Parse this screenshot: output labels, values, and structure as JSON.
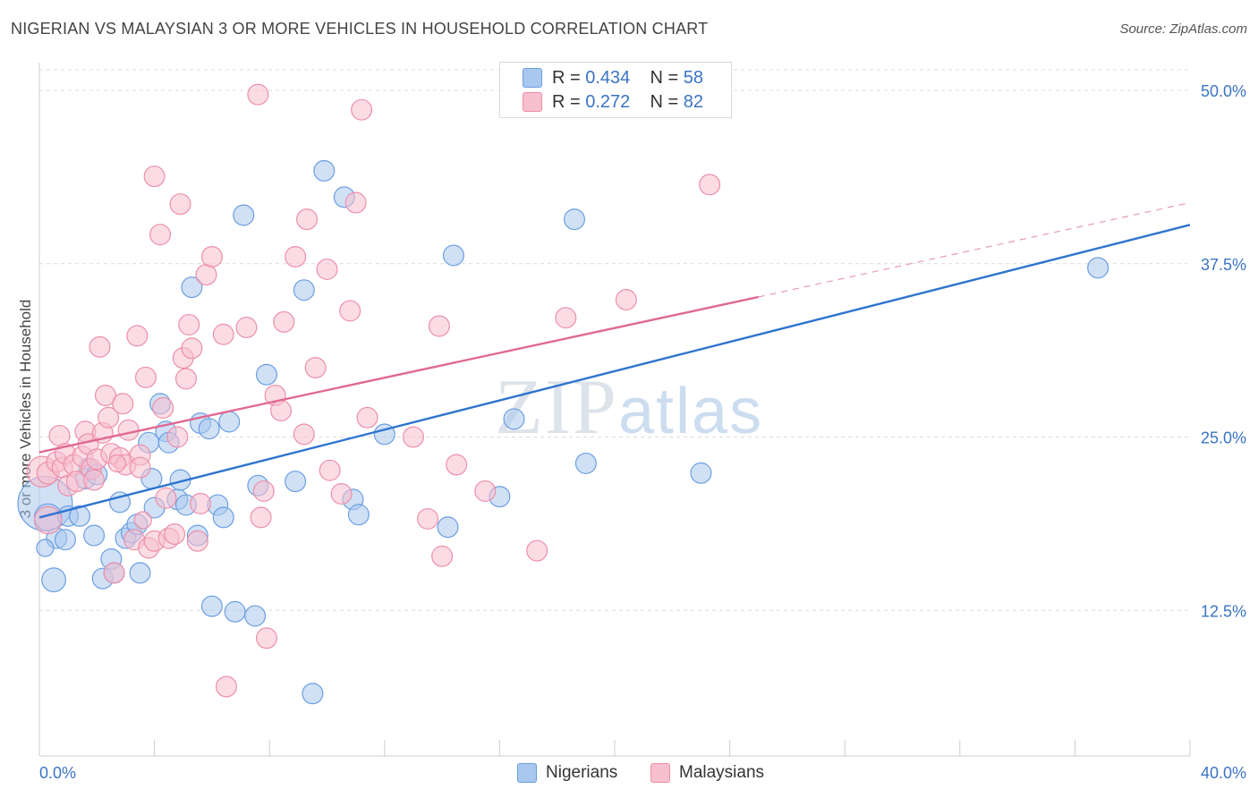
{
  "title": "NIGERIAN VS MALAYSIAN 3 OR MORE VEHICLES IN HOUSEHOLD CORRELATION CHART",
  "source": "Source: ZipAtlas.com",
  "watermark": {
    "zip": "ZIP",
    "atlas": "atlas"
  },
  "legend": {
    "r_label": "R =",
    "n_label": "N =",
    "rows": [
      {
        "name": "Nigerians",
        "r": "0.434",
        "n": "58",
        "color": "#a9c8ef",
        "edge": "#6b9ee0"
      },
      {
        "name": "Malaysians",
        "r": "0.272",
        "n": "82",
        "color": "#f8c0cf",
        "edge": "#ec8fa9"
      }
    ]
  },
  "chart_data": {
    "type": "scatter",
    "title": "NIGERIAN VS MALAYSIAN 3 OR MORE VEHICLES IN HOUSEHOLD CORRELATION CHART",
    "xlabel": "",
    "ylabel": "3 or more Vehicles in Household",
    "xlim": [
      0,
      40
    ],
    "ylim": [
      2,
      52
    ],
    "x_tick_labels": [
      "0.0%",
      "40.0%"
    ],
    "y_ticks": [
      12.5,
      25.0,
      37.5,
      50.0
    ],
    "y_tick_labels": [
      "12.5%",
      "25.0%",
      "37.5%",
      "50.0%"
    ],
    "series": [
      {
        "name": "Nigerians",
        "color": "#6b9ee0",
        "fill": "#a9c8ef",
        "trend": {
          "x0": 0,
          "y0": 19.2,
          "x1": 40,
          "y1": 40.3
        },
        "points": [
          [
            0.2,
            20.2,
            3.2
          ],
          [
            0.3,
            19.2,
            1.6
          ],
          [
            0.5,
            14.7,
            1.4
          ],
          [
            0.6,
            17.7,
            1.2
          ],
          [
            0.9,
            17.6,
            1.2
          ],
          [
            1.0,
            19.3,
            1.2
          ],
          [
            1.4,
            19.3,
            1.2
          ],
          [
            1.6,
            22.0,
            1.2
          ],
          [
            1.7,
            22.8,
            1.1
          ],
          [
            2.0,
            22.3,
            1.2
          ],
          [
            1.9,
            17.9,
            1.2
          ],
          [
            2.2,
            14.8,
            1.2
          ],
          [
            2.5,
            16.2,
            1.2
          ],
          [
            2.6,
            15.2,
            1.2
          ],
          [
            2.8,
            20.3,
            1.2
          ],
          [
            3.0,
            17.7,
            1.2
          ],
          [
            3.2,
            18.1,
            1.2
          ],
          [
            3.4,
            18.7,
            1.2
          ],
          [
            3.5,
            15.2,
            1.2
          ],
          [
            3.8,
            24.6,
            1.2
          ],
          [
            3.9,
            22.0,
            1.2
          ],
          [
            4.0,
            19.9,
            1.2
          ],
          [
            4.2,
            27.4,
            1.2
          ],
          [
            4.4,
            25.4,
            1.2
          ],
          [
            4.5,
            24.6,
            1.2
          ],
          [
            4.8,
            20.5,
            1.2
          ],
          [
            4.9,
            21.9,
            1.2
          ],
          [
            5.1,
            20.1,
            1.2
          ],
          [
            5.3,
            35.8,
            1.2
          ],
          [
            5.5,
            17.9,
            1.2
          ],
          [
            5.6,
            26.0,
            1.2
          ],
          [
            5.9,
            25.6,
            1.2
          ],
          [
            6.0,
            12.8,
            1.2
          ],
          [
            6.2,
            20.1,
            1.2
          ],
          [
            6.4,
            19.2,
            1.2
          ],
          [
            6.6,
            26.1,
            1.2
          ],
          [
            6.8,
            12.4,
            1.2
          ],
          [
            7.1,
            41.0,
            1.2
          ],
          [
            7.5,
            12.1,
            1.2
          ],
          [
            7.6,
            21.5,
            1.2
          ],
          [
            7.9,
            29.5,
            1.2
          ],
          [
            8.9,
            21.8,
            1.2
          ],
          [
            9.2,
            35.6,
            1.2
          ],
          [
            9.5,
            6.5,
            1.2
          ],
          [
            9.9,
            44.2,
            1.2
          ],
          [
            10.6,
            42.3,
            1.2
          ],
          [
            10.9,
            20.5,
            1.2
          ],
          [
            11.1,
            19.4,
            1.2
          ],
          [
            12.0,
            25.2,
            1.2
          ],
          [
            14.4,
            38.1,
            1.2
          ],
          [
            14.2,
            18.5,
            1.2
          ],
          [
            16.0,
            20.7,
            1.2
          ],
          [
            16.5,
            26.3,
            1.2
          ],
          [
            18.6,
            40.7,
            1.2
          ],
          [
            19.0,
            23.1,
            1.2
          ],
          [
            23.0,
            22.4,
            1.2
          ],
          [
            36.8,
            37.2,
            1.2
          ],
          [
            0.2,
            17.0,
            1.0
          ]
        ]
      },
      {
        "name": "Malaysians",
        "color": "#ec8fa9",
        "fill": "#f8c0cf",
        "trend": {
          "x0": 0,
          "y0": 23.9,
          "x1": 25,
          "y1": 35.1
        },
        "trend_dashed": {
          "x0": 25,
          "y0": 35.1,
          "x1": 40,
          "y1": 41.9
        },
        "points": [
          [
            0.1,
            22.5,
            1.8
          ],
          [
            0.3,
            22.4,
            1.3
          ],
          [
            0.3,
            19.0,
            1.6
          ],
          [
            0.6,
            23.2,
            1.2
          ],
          [
            0.7,
            25.1,
            1.2
          ],
          [
            0.8,
            22.8,
            1.2
          ],
          [
            0.9,
            23.8,
            1.2
          ],
          [
            1.0,
            21.5,
            1.2
          ],
          [
            1.2,
            23.0,
            1.2
          ],
          [
            1.3,
            21.8,
            1.2
          ],
          [
            1.5,
            23.6,
            1.2
          ],
          [
            1.6,
            25.4,
            1.2
          ],
          [
            1.7,
            24.5,
            1.2
          ],
          [
            1.8,
            22.7,
            1.2
          ],
          [
            1.9,
            21.9,
            1.2
          ],
          [
            2.0,
            23.4,
            1.2
          ],
          [
            2.1,
            31.5,
            1.2
          ],
          [
            2.2,
            25.3,
            1.2
          ],
          [
            2.3,
            28.0,
            1.2
          ],
          [
            2.4,
            26.4,
            1.2
          ],
          [
            2.5,
            23.8,
            1.2
          ],
          [
            2.6,
            15.2,
            1.2
          ],
          [
            2.8,
            23.5,
            1.2
          ],
          [
            2.9,
            27.4,
            1.2
          ],
          [
            3.1,
            25.5,
            1.2
          ],
          [
            3.0,
            23.0,
            1.2
          ],
          [
            3.3,
            17.6,
            1.2
          ],
          [
            3.4,
            32.3,
            1.2
          ],
          [
            3.5,
            23.7,
            1.2
          ],
          [
            3.5,
            22.8,
            1.2
          ],
          [
            3.7,
            29.3,
            1.2
          ],
          [
            3.8,
            17.0,
            1.2
          ],
          [
            4.0,
            17.5,
            1.2
          ],
          [
            4.0,
            43.8,
            1.2
          ],
          [
            4.2,
            39.6,
            1.2
          ],
          [
            4.3,
            27.1,
            1.2
          ],
          [
            4.4,
            20.6,
            1.2
          ],
          [
            4.5,
            17.7,
            1.2
          ],
          [
            4.7,
            18.0,
            1.2
          ],
          [
            4.8,
            25.0,
            1.2
          ],
          [
            4.9,
            41.8,
            1.2
          ],
          [
            5.0,
            30.7,
            1.2
          ],
          [
            5.1,
            29.2,
            1.2
          ],
          [
            5.2,
            33.1,
            1.2
          ],
          [
            5.3,
            31.4,
            1.2
          ],
          [
            5.5,
            17.5,
            1.2
          ],
          [
            5.6,
            20.2,
            1.2
          ],
          [
            5.8,
            36.7,
            1.2
          ],
          [
            6.0,
            38.0,
            1.2
          ],
          [
            6.4,
            32.4,
            1.2
          ],
          [
            6.5,
            7.0,
            1.2
          ],
          [
            7.2,
            32.9,
            1.2
          ],
          [
            7.7,
            19.2,
            1.2
          ],
          [
            7.8,
            21.1,
            1.2
          ],
          [
            7.9,
            10.5,
            1.2
          ],
          [
            8.2,
            28.0,
            1.2
          ],
          [
            8.4,
            26.9,
            1.2
          ],
          [
            8.5,
            33.3,
            1.2
          ],
          [
            8.9,
            38.0,
            1.2
          ],
          [
            9.2,
            25.2,
            1.2
          ],
          [
            9.3,
            40.7,
            1.2
          ],
          [
            9.6,
            30.0,
            1.2
          ],
          [
            10.0,
            37.1,
            1.2
          ],
          [
            10.1,
            22.6,
            1.2
          ],
          [
            10.5,
            20.9,
            1.2
          ],
          [
            10.8,
            34.1,
            1.2
          ],
          [
            11.0,
            41.9,
            1.2
          ],
          [
            11.4,
            26.4,
            1.2
          ],
          [
            7.6,
            49.7,
            1.2
          ],
          [
            11.2,
            48.6,
            1.2
          ],
          [
            13.0,
            25.0,
            1.2
          ],
          [
            13.5,
            19.1,
            1.2
          ],
          [
            13.9,
            33.0,
            1.2
          ],
          [
            14.0,
            16.4,
            1.2
          ],
          [
            14.5,
            23.0,
            1.2
          ],
          [
            15.5,
            21.1,
            1.2
          ],
          [
            17.3,
            16.8,
            1.2
          ],
          [
            18.3,
            33.6,
            1.2
          ],
          [
            20.4,
            34.9,
            1.2
          ],
          [
            23.3,
            43.2,
            1.2
          ],
          [
            3.6,
            19.0,
            1.0
          ],
          [
            2.7,
            23.1,
            1.0
          ]
        ]
      }
    ]
  }
}
